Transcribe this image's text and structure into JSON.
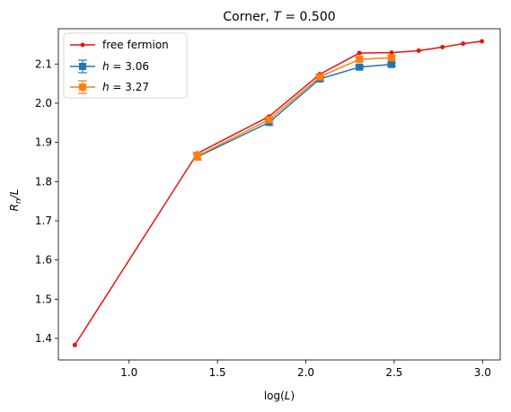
{
  "chart_data": {
    "type": "line",
    "title_prefix": "Corner, ",
    "title_var": "T",
    "title_value": " = 0.500",
    "xlabel_prefix": "log(",
    "xlabel_var": "L",
    "xlabel_suffix": ")",
    "ylabel_main": "R",
    "ylabel_sub": "n",
    "ylabel_suffix": "/L",
    "xlim": [
      0.6,
      3.1
    ],
    "ylim": [
      1.345,
      2.19
    ],
    "xticks": [
      1.0,
      1.5,
      2.0,
      2.5,
      3.0
    ],
    "xtick_labels": [
      "1.0",
      "1.5",
      "2.0",
      "2.5",
      "3.0"
    ],
    "yticks": [
      1.4,
      1.5,
      1.6,
      1.7,
      1.8,
      1.9,
      2.0,
      2.1
    ],
    "ytick_labels": [
      "1.4",
      "1.5",
      "1.6",
      "1.7",
      "1.8",
      "1.9",
      "2.0",
      "2.1"
    ],
    "grid": false,
    "legend_position": "top-left",
    "series": [
      {
        "name": "free fermion",
        "label_var": "",
        "label_value": "free fermion",
        "color": "#e8120f",
        "marker": "circle",
        "x": [
          0.693,
          1.386,
          1.792,
          2.079,
          2.303,
          2.485,
          2.639,
          2.773,
          2.89,
          2.996
        ],
        "y": [
          1.383,
          1.872,
          1.966,
          2.074,
          2.128,
          2.129,
          2.134,
          2.143,
          2.152,
          2.158
        ],
        "err": null
      },
      {
        "name": "h = 3.06",
        "label_var": "h",
        "label_value": " = 3.06",
        "color": "#1f77b4",
        "marker": "square",
        "x": [
          1.386,
          1.792,
          2.079,
          2.303,
          2.485
        ],
        "y": [
          1.863,
          1.951,
          2.062,
          2.092,
          2.099
        ],
        "err": [
          0.008,
          0.006,
          0.005,
          0.004,
          0.004
        ]
      },
      {
        "name": "h = 3.27",
        "label_var": "h",
        "label_value": " = 3.27",
        "color": "#ff7f0e",
        "marker": "square",
        "x": [
          1.386,
          1.792,
          2.079,
          2.303,
          2.485
        ],
        "y": [
          1.865,
          1.958,
          2.067,
          2.112,
          2.116
        ],
        "err": [
          0.01,
          0.007,
          0.006,
          0.005,
          0.005
        ]
      }
    ]
  }
}
